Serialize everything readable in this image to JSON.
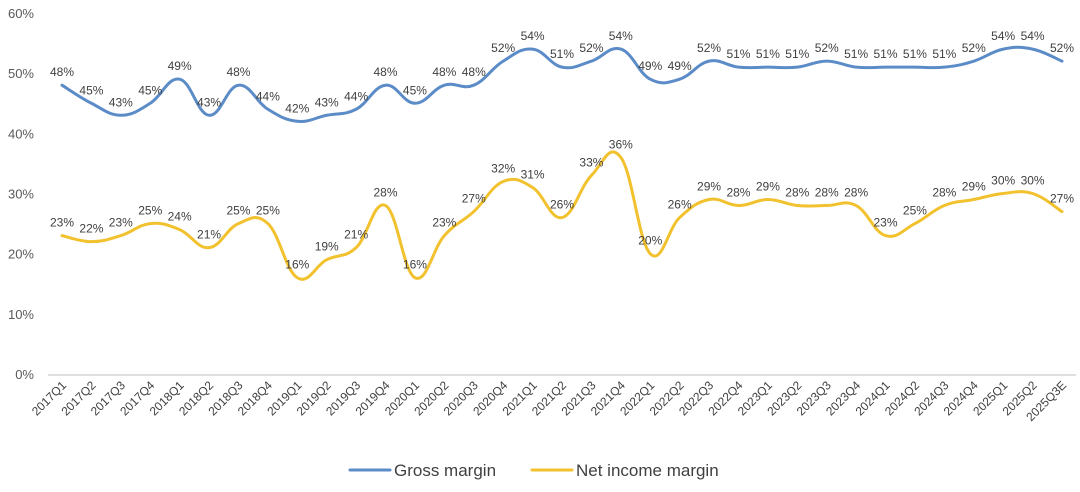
{
  "chart_data": {
    "type": "line",
    "title": "",
    "xlabel": "",
    "ylabel": "",
    "ylim": [
      0,
      60
    ],
    "yticks": [
      "0%",
      "10%",
      "20%",
      "30%",
      "40%",
      "50%",
      "60%"
    ],
    "grid": false,
    "legend": "bottom",
    "categories": [
      "2017Q1",
      "2017Q2",
      "2017Q3",
      "2017Q4",
      "2018Q1",
      "2018Q2",
      "2018Q3",
      "2018Q4",
      "2019Q1",
      "2019Q2",
      "2019Q3",
      "2019Q4",
      "2020Q1",
      "2020Q2",
      "2020Q3",
      "2020Q4",
      "2021Q1",
      "2021Q2",
      "2021Q3",
      "2021Q4",
      "2022Q1",
      "2022Q2",
      "2022Q3",
      "2022Q4",
      "2023Q1",
      "2023Q2",
      "2023Q3",
      "2023Q4",
      "2024Q1",
      "2024Q2",
      "2024Q3",
      "2024Q4",
      "2025Q1",
      "2025Q2",
      "2025Q3E"
    ],
    "series": [
      {
        "name": "Gross margin",
        "color": "#5B8CC8",
        "values": [
          48,
          45,
          43,
          45,
          49,
          43,
          48,
          44,
          42,
          43,
          44,
          48,
          45,
          48,
          48,
          52,
          54,
          51,
          52,
          54,
          49,
          49,
          52,
          51,
          51,
          51,
          52,
          51,
          51,
          51,
          51,
          52,
          54,
          54,
          52
        ]
      },
      {
        "name": "Net income margin",
        "color": "#F2C12E",
        "values": [
          23,
          22,
          23,
          25,
          24,
          21,
          25,
          25,
          16,
          19,
          21,
          28,
          16,
          23,
          27,
          32,
          31,
          26,
          33,
          36,
          20,
          26,
          29,
          28,
          29,
          28,
          28,
          28,
          23,
          25,
          28,
          29,
          30,
          30,
          27
        ]
      }
    ]
  }
}
